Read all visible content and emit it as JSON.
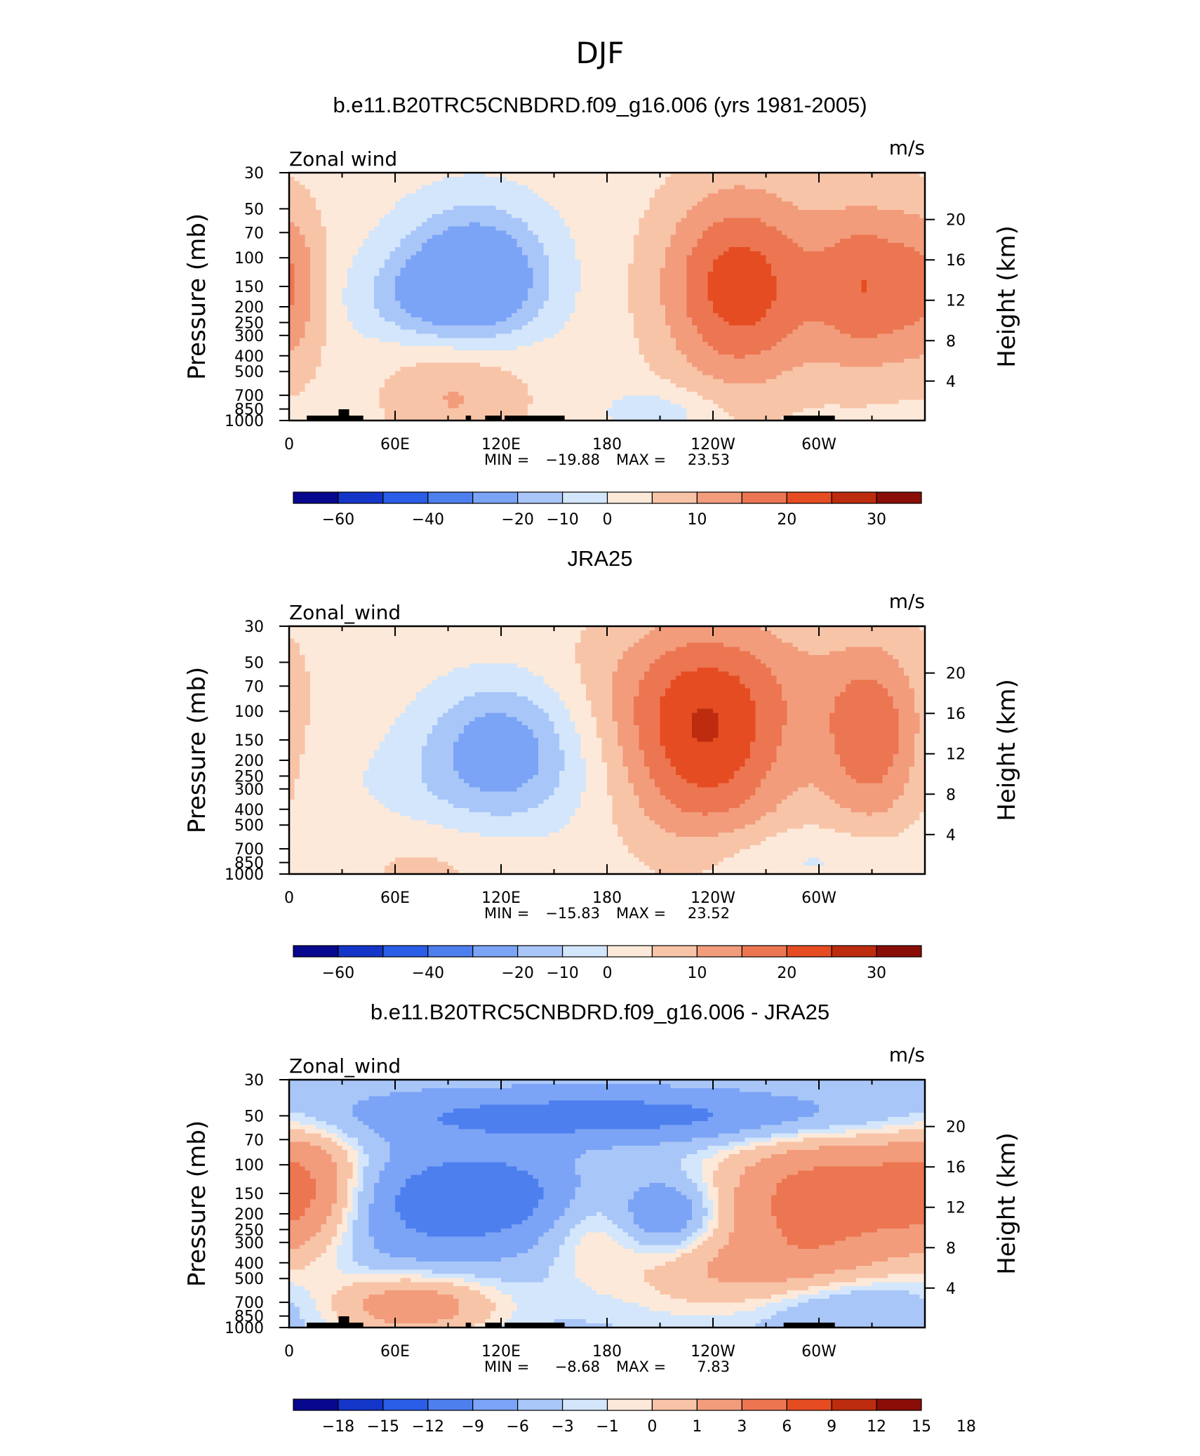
{
  "page_title": "DJF",
  "chart_data": [
    {
      "type": "contour",
      "title": "b.e11.B20TRC5CNBDRD.f09_g16.006 (yrs 1981-2005)",
      "variable_label": "Zonal wind",
      "units": "m/s",
      "ylabel_left": "Pressure (mb)",
      "ylabel_right": "Height (km)",
      "x_ticks": [
        "0",
        "60E",
        "120E",
        "180",
        "120W",
        "60W"
      ],
      "y_ticks": [
        "30",
        "50",
        "70",
        "100",
        "150",
        "200",
        "250",
        "300",
        "400",
        "500",
        "700",
        "850",
        "1000"
      ],
      "height_ticks": [
        "20",
        "16",
        "12",
        "8",
        "4"
      ],
      "stats": {
        "min_label": "MIN =",
        "min": "−19.88",
        "max_label": "MAX =",
        "max": "23.53"
      },
      "colorbar_labels": [
        "−60",
        "−40",
        "−20",
        "−10",
        "0",
        "10",
        "20",
        "30"
      ],
      "colorbar_colors": [
        "#08088e",
        "#1436c8",
        "#2a5ee6",
        "#4e7fee",
        "#7ba4f6",
        "#a9c6f8",
        "#d3e6fb",
        "#fde9d9",
        "#f8c4a8",
        "#f29c7c",
        "#ec7651",
        "#e64c22",
        "#bd2c0e",
        "#8a0e07"
      ],
      "field": {
        "base": 2,
        "highs": [
          {
            "lon": 255,
            "p": 150,
            "amp": 21,
            "slon": 32,
            "sz": 0.46
          },
          {
            "lon": 328,
            "p": 150,
            "amp": 16,
            "slon": 22,
            "sz": 0.4
          },
          {
            "lon": 2,
            "p": 150,
            "amp": 9,
            "slon": 14,
            "sz": 0.4
          },
          {
            "lon": 95,
            "p": 650,
            "amp": 9,
            "slon": 30,
            "sz": 0.3
          }
        ],
        "lows": [
          {
            "lon": 105,
            "p": 130,
            "amp": 22,
            "slon": 28,
            "sz": 0.3
          },
          {
            "lon": 75,
            "p": 180,
            "amp": 8,
            "slon": 30,
            "sz": 0.2
          },
          {
            "lon": 210,
            "p": 870,
            "amp": 6,
            "slon": 22,
            "sz": 0.1
          }
        ]
      },
      "topography": true
    },
    {
      "type": "contour",
      "title": "JRA25",
      "variable_label": "Zonal_wind",
      "units": "m/s",
      "ylabel_left": "Pressure (mb)",
      "ylabel_right": "Height (km)",
      "x_ticks": [
        "0",
        "60E",
        "120E",
        "180",
        "120W",
        "60W"
      ],
      "y_ticks": [
        "30",
        "50",
        "70",
        "100",
        "150",
        "200",
        "250",
        "300",
        "400",
        "500",
        "700",
        "850",
        "1000"
      ],
      "height_ticks": [
        "20",
        "16",
        "12",
        "8",
        "4"
      ],
      "stats": {
        "min_label": "MIN =",
        "min": "−15.83",
        "max_label": "MAX =",
        "max": "23.52"
      },
      "colorbar_labels": [
        "−60",
        "−40",
        "−20",
        "−10",
        "0",
        "10",
        "20",
        "30"
      ],
      "colorbar_colors": [
        "#08088e",
        "#1436c8",
        "#2a5ee6",
        "#4e7fee",
        "#7ba4f6",
        "#a9c6f8",
        "#d3e6fb",
        "#fde9d9",
        "#f8c4a8",
        "#f29c7c",
        "#ec7651",
        "#e64c22",
        "#bd2c0e",
        "#8a0e07"
      ],
      "field": {
        "base": 3,
        "highs": [
          {
            "lon": 235,
            "p": 150,
            "amp": 21,
            "slon": 36,
            "sz": 0.48
          },
          {
            "lon": 330,
            "p": 150,
            "amp": 15,
            "slon": 20,
            "sz": 0.4
          },
          {
            "lon": 255,
            "p": 60,
            "amp": 4,
            "slon": 70,
            "sz": 0.3
          },
          {
            "lon": 80,
            "p": 800,
            "amp": 4,
            "slon": 40,
            "sz": 0.2
          }
        ],
        "lows": [
          {
            "lon": 120,
            "p": 150,
            "amp": 14,
            "slon": 30,
            "sz": 0.3
          },
          {
            "lon": 110,
            "p": 300,
            "amp": 6,
            "slon": 55,
            "sz": 0.3
          },
          {
            "lon": 290,
            "p": 800,
            "amp": 5,
            "slon": 50,
            "sz": 0.15
          }
        ]
      },
      "topography": false
    },
    {
      "type": "contour",
      "title": "b.e11.B20TRC5CNBDRD.f09_g16.006 - JRA25",
      "variable_label": "Zonal_wind",
      "units": "m/s",
      "ylabel_left": "Pressure (mb)",
      "ylabel_right": "Height (km)",
      "x_ticks": [
        "0",
        "60E",
        "120E",
        "180",
        "120W",
        "60W"
      ],
      "y_ticks": [
        "30",
        "50",
        "70",
        "100",
        "150",
        "200",
        "250",
        "300",
        "400",
        "500",
        "700",
        "850",
        "1000"
      ],
      "height_ticks": [
        "20",
        "16",
        "12",
        "8",
        "4"
      ],
      "stats": {
        "min_label": "MIN =",
        "min": "−8.68",
        "max_label": "MAX =",
        "max": "7.83"
      },
      "colorbar_labels": [
        "−18",
        "−15",
        "−12",
        "−9",
        "−6",
        "−3",
        "−1",
        "0",
        "1",
        "3",
        "6",
        "9",
        "12",
        "15",
        "18"
      ],
      "colorbar_colors": [
        "#08088e",
        "#1436c8",
        "#2a5ee6",
        "#4e7fee",
        "#7ba4f6",
        "#a9c6f8",
        "#d3e6fb",
        "#fde9d9",
        "#f8c4a8",
        "#f29c7c",
        "#ec7651",
        "#e64c22",
        "#bd2c0e",
        "#8a0e07"
      ],
      "field": {
        "base": -1.5,
        "highs": [
          {
            "lon": 305,
            "p": 160,
            "amp": 9.5,
            "slon": 45,
            "sz": 0.3
          },
          {
            "lon": 10,
            "p": 150,
            "amp": 7,
            "slon": 25,
            "sz": 0.3
          },
          {
            "lon": 70,
            "p": 720,
            "amp": 7,
            "slon": 35,
            "sz": 0.15
          },
          {
            "lon": 270,
            "p": 500,
            "amp": 5,
            "slon": 55,
            "sz": 0.2
          },
          {
            "lon": 170,
            "p": 230,
            "amp": 3,
            "slon": 20,
            "sz": 0.25
          }
        ],
        "lows": [
          {
            "lon": 110,
            "p": 150,
            "amp": 6,
            "slon": 45,
            "sz": 0.2
          },
          {
            "lon": 180,
            "p": 50,
            "amp": 6,
            "slon": 110,
            "sz": 0.12
          },
          {
            "lon": 215,
            "p": 200,
            "amp": 5,
            "slon": 18,
            "sz": 0.15
          },
          {
            "lon": 60,
            "p": 250,
            "amp": 3,
            "slon": 60,
            "sz": 0.3
          },
          {
            "lon": 310,
            "p": 700,
            "amp": 4,
            "slon": 40,
            "sz": 0.15
          }
        ]
      },
      "topography": true
    }
  ],
  "topography_lon_ranges": [
    [
      10,
      42
    ],
    [
      28,
      34
    ],
    [
      100,
      103
    ],
    [
      111,
      120
    ],
    [
      122,
      156
    ],
    [
      280,
      309
    ]
  ]
}
